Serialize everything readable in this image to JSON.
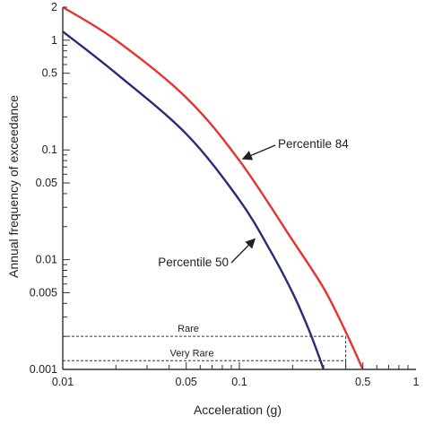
{
  "chart_data": {
    "type": "line",
    "xlabel": "Acceleration (g)",
    "ylabel": "Annual frequency of exceedance",
    "x_scale": "log",
    "y_scale": "log",
    "xlim": [
      0.01,
      1
    ],
    "ylim": [
      0.001,
      2
    ],
    "x_ticks": [
      {
        "value": 0.01,
        "label": "0.01"
      },
      {
        "value": 0.05,
        "label": "0.05"
      },
      {
        "value": 0.1,
        "label": "0.1"
      },
      {
        "value": 0.5,
        "label": "0.5"
      },
      {
        "value": 1,
        "label": "1"
      }
    ],
    "y_ticks": [
      {
        "value": 2,
        "label": "2"
      },
      {
        "value": 1,
        "label": "1"
      },
      {
        "value": 0.5,
        "label": "0.5"
      },
      {
        "value": 0.1,
        "label": "0.1"
      },
      {
        "value": 0.05,
        "label": "0.05"
      },
      {
        "value": 0.01,
        "label": "0.01"
      },
      {
        "value": 0.005,
        "label": "0.005"
      },
      {
        "value": 0.001,
        "label": "0.001"
      }
    ],
    "grid": false,
    "series": [
      {
        "name": "Percentile 84",
        "color": "#e8322b",
        "x": [
          0.01,
          0.02,
          0.05,
          0.1,
          0.2,
          0.3,
          0.4,
          0.5
        ],
        "y": [
          2,
          1.0,
          0.3,
          0.08,
          0.015,
          0.0055,
          0.0022,
          0.001
        ]
      },
      {
        "name": "Percentile 50",
        "color": "#2a2a7a",
        "x": [
          0.01,
          0.02,
          0.05,
          0.1,
          0.15,
          0.2,
          0.25,
          0.3
        ],
        "y": [
          1.2,
          0.5,
          0.14,
          0.035,
          0.012,
          0.005,
          0.0022,
          0.001
        ]
      }
    ],
    "annotations": [
      {
        "text": "Percentile 84",
        "x": 0.1,
        "y": 0.08,
        "series": "Percentile 84"
      },
      {
        "text": "Percentile 50",
        "x": 0.125,
        "y": 0.016,
        "series": "Percentile 50"
      },
      {
        "text": "Rare",
        "y": 0.002
      },
      {
        "text": "Very Rare",
        "y": 0.0012
      }
    ],
    "reference_lines": [
      {
        "name": "Rare",
        "y": 0.002,
        "x_end": 0.4
      },
      {
        "name": "Very Rare",
        "y": 0.0012,
        "x_end": 0.4
      }
    ]
  }
}
